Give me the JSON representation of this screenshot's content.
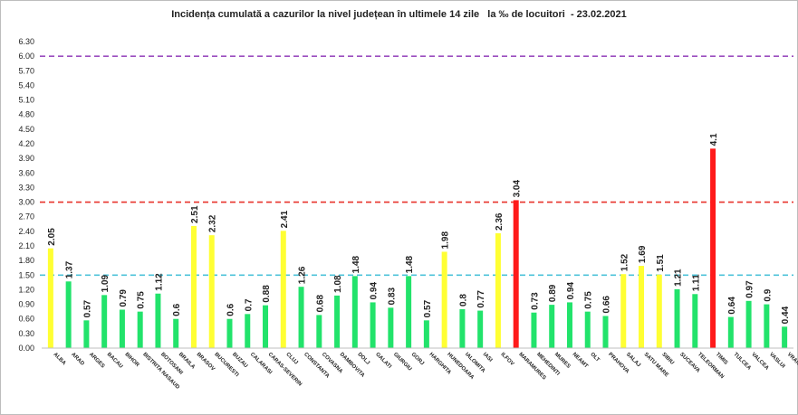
{
  "chart_data": {
    "type": "bar",
    "title": "Incidența cumulată a cazurilor la nivel județean în ultimele 14 zile   la ‰ de locuitori  - 23.02.2021",
    "xlabel": "",
    "ylabel": "",
    "ylim": [
      0,
      6.3
    ],
    "yticks": [
      "0.00",
      "0.30",
      "0.60",
      "0.90",
      "1.20",
      "1.50",
      "1.80",
      "2.10",
      "2.40",
      "2.70",
      "3.00",
      "3.30",
      "3.60",
      "3.90",
      "4.20",
      "4.50",
      "4.80",
      "5.10",
      "5.40",
      "5.70",
      "6.00",
      "6.30"
    ],
    "grid": false,
    "legend": "none",
    "categories": [
      "ALBA",
      "ARAD",
      "ARGES",
      "BACAU",
      "BIHOR",
      "BISTRITA NASAUD",
      "BOTOSANI",
      "BRAILA",
      "BRASOV",
      "BUCURESTI",
      "BUZAU",
      "CALARASI",
      "CARAS-SEVERIN",
      "CLUJ",
      "CONSTANTA",
      "COVASNA",
      "DAMBOVITA",
      "DOLJ",
      "GALATI",
      "GIURGIU",
      "GORJ",
      "HARGHITA",
      "HUNEDOARA",
      "IALOMITA",
      "IASI",
      "ILFOV",
      "MARAMURES",
      "MEHEDINTI",
      "MURES",
      "NEAMT",
      "OLT",
      "PRAHOVA",
      "SALAJ",
      "SATU MARE",
      "SIBIU",
      "SUCEAVA",
      "TELEORMAN",
      "TIMIS",
      "TULCEA",
      "VALCEA",
      "VASLUI",
      "VRANCEA"
    ],
    "values": [
      2.05,
      1.37,
      0.57,
      1.09,
      0.79,
      0.75,
      1.12,
      0.6,
      2.51,
      2.32,
      0.6,
      0.7,
      0.88,
      2.41,
      1.26,
      0.68,
      1.08,
      1.48,
      0.94,
      0.83,
      1.48,
      0.57,
      1.98,
      0.8,
      0.77,
      2.36,
      3.04,
      0.73,
      0.89,
      0.94,
      0.75,
      0.66,
      1.52,
      1.69,
      1.51,
      1.21,
      1.11,
      4.1,
      0.64,
      0.97,
      0.9,
      0.44
    ],
    "value_labels": [
      "2.05",
      "1.37",
      "0.57",
      "1.09",
      "0.79",
      "0.75",
      "1.12",
      "0.6",
      "2.51",
      "2.32",
      "0.6",
      "0.7",
      "0.88",
      "2.41",
      "1.26",
      "0.68",
      "1.08",
      "1.48",
      "0.94",
      "0.83",
      "1.48",
      "0.57",
      "1.98",
      "0.8",
      "0.77",
      "2.36",
      "3.04",
      "0.73",
      "0.89",
      "0.94",
      "0.75",
      "0.66",
      "1.52",
      "1.69",
      "1.51",
      "1.21",
      "1.11",
      "4.1",
      "0.64",
      "0.97",
      "0.9",
      "0.44"
    ],
    "thresholds": [
      {
        "value": 1.5,
        "style": "dashed",
        "color": "#4cc3d9"
      },
      {
        "value": 3.0,
        "style": "dashed",
        "color": "#e8332b"
      },
      {
        "value": 6.0,
        "style": "dashed",
        "color": "#9b4dbf"
      }
    ],
    "colors": {
      "green": "#22e36b",
      "yellow": "#ffff33",
      "red": "#ff1a1a"
    },
    "color_rule": "green below 1.5, yellow from 1.5 to 3, red above 3"
  }
}
